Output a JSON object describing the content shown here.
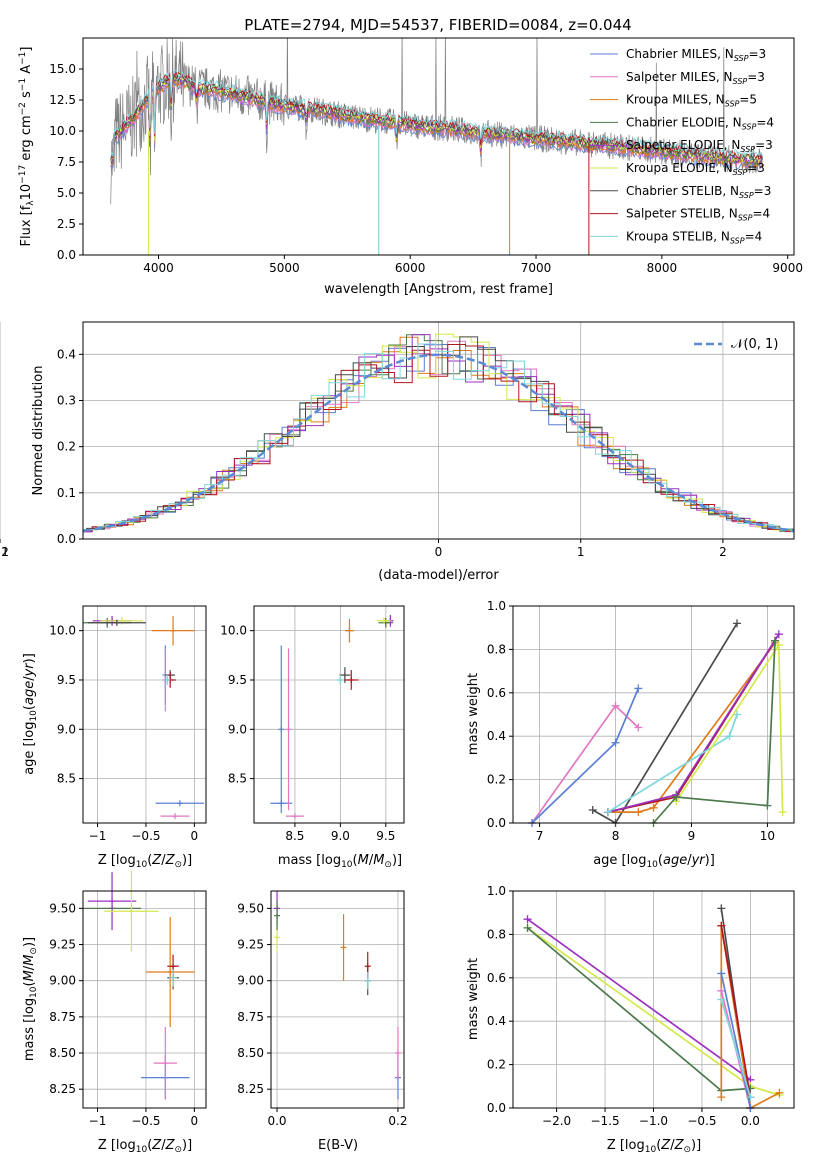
{
  "figure": {
    "title": "PLATE=2794, MJD=54537, FIBERID=0084, z=0.044"
  },
  "colors": {
    "chabrier_miles": "#5b7fd4",
    "salpeter_miles": "#e377c2",
    "kroupa_miles": "#e07b1a",
    "chabrier_elodie": "#4c7a4c",
    "salpeter_elodie": "#9b30c0",
    "kroupa_elodie": "#d4e84a",
    "chabrier_stelib": "#4a4a4a",
    "salpeter_stelib": "#b01820",
    "kroupa_stelib": "#7fd6dc",
    "data": "#808080",
    "gaussian": "#5b8bd4"
  },
  "chart_data": [
    {
      "id": "spectrum",
      "type": "line",
      "xlabel": "wavelength [Angstrom, rest frame]",
      "ylabel": "Flux [f_λ 10^-17 erg cm^-2 s^-1 A^-1]",
      "xlim": [
        3400,
        9050
      ],
      "ylim": [
        0,
        17.5
      ],
      "xticks": [
        "4000",
        "5000",
        "6000",
        "7000",
        "8000",
        "9000"
      ],
      "yticks": [
        "0.0",
        "2.5",
        "5.0",
        "7.5",
        "10.0",
        "12.5",
        "15.0"
      ],
      "legend_position": "top-right",
      "legend": [
        {
          "model": "Chabrier MILES",
          "n": "3",
          "color_key": "chabrier_miles"
        },
        {
          "model": "Salpeter MILES",
          "n": "3",
          "color_key": "salpeter_miles"
        },
        {
          "model": "Kroupa MILES",
          "n": "5",
          "color_key": "kroupa_miles"
        },
        {
          "model": "Chabrier ELODIE",
          "n": "4",
          "color_key": "chabrier_elodie"
        },
        {
          "model": "Salpeter ELODIE",
          "n": "3",
          "color_key": "salpeter_elodie"
        },
        {
          "model": "Kroupa ELODIE",
          "n": "3",
          "color_key": "kroupa_elodie"
        },
        {
          "model": "Chabrier STELIB",
          "n": "3",
          "color_key": "chabrier_stelib"
        },
        {
          "model": "Salpeter STELIB",
          "n": "4",
          "color_key": "salpeter_stelib"
        },
        {
          "model": "Kroupa STELIB",
          "n": "4",
          "color_key": "kroupa_stelib"
        }
      ],
      "legend_subscript": "SSP",
      "continuum": [
        [
          3650,
          9.5
        ],
        [
          3700,
          10.0
        ],
        [
          3800,
          11.0
        ],
        [
          3900,
          12.5
        ],
        [
          4000,
          13.5
        ],
        [
          4100,
          14.2
        ],
        [
          4200,
          14.0
        ],
        [
          4300,
          13.5
        ],
        [
          4500,
          13.2
        ],
        [
          4800,
          12.5
        ],
        [
          5000,
          12.0
        ],
        [
          5200,
          11.8
        ],
        [
          5500,
          11.2
        ],
        [
          5800,
          10.8
        ],
        [
          6000,
          10.5
        ],
        [
          6300,
          10.2
        ],
        [
          6600,
          9.8
        ],
        [
          7000,
          9.4
        ],
        [
          7400,
          9.0
        ],
        [
          7800,
          8.6
        ],
        [
          8200,
          8.1
        ],
        [
          8500,
          7.8
        ],
        [
          8800,
          7.6
        ]
      ],
      "absorption_lines": [
        [
          3934,
          6.0
        ],
        [
          3969,
          5.0
        ],
        [
          4102,
          3.0
        ],
        [
          4304,
          2.0
        ],
        [
          4861,
          2.5
        ],
        [
          5175,
          2.0
        ],
        [
          5893,
          2.0
        ],
        [
          6563,
          2.0
        ]
      ]
    },
    {
      "id": "residuals",
      "type": "line",
      "xlabel": "(data-model)/error",
      "ylabel": "Normed distribution",
      "xlim": [
        -2.5,
        2.5
      ],
      "ylim": [
        0,
        0.47
      ],
      "xticks": [
        "−2",
        "−1",
        "0",
        "1",
        "2"
      ],
      "yticks": [
        "0.0",
        "0.1",
        "0.2",
        "0.3",
        "0.4"
      ],
      "grid": true,
      "legend_position": "top-right",
      "gaussian_label": "𝒩(0, 1)",
      "bin_width": 0.125
    },
    {
      "id": "age_vs_Z",
      "type": "scatter",
      "xlabel": "Z [log10(Z/Z⊙)]",
      "ylabel": "age [log10(age/yr)]",
      "xlim": [
        -1.15,
        0.12
      ],
      "ylim": [
        8.05,
        10.25
      ],
      "xticks": [
        -1,
        -0.5,
        0
      ],
      "xticklabels": [
        "−1",
        "−0.5",
        "0"
      ],
      "yticks": [
        8.5,
        9.0,
        9.5,
        10.0
      ],
      "yticklabels": [
        "8.5",
        "9.0",
        "9.5",
        "10.0"
      ],
      "points": [
        {
          "c": "chabrier_miles",
          "x": -0.15,
          "y": 8.25,
          "xe": 0.25,
          "ye": 0
        },
        {
          "c": "salpeter_miles",
          "x": -0.2,
          "y": 8.12,
          "xe": 0.15,
          "ye": 0
        },
        {
          "c": "chabrier_miles",
          "x": -0.3,
          "y": 9.55,
          "xe": 0,
          "ye": 0.3
        },
        {
          "c": "salpeter_miles",
          "x": -0.3,
          "y": 9.5,
          "xe": 0,
          "ye": 0.32
        },
        {
          "c": "kroupa_miles",
          "x": -0.22,
          "y": 10.0,
          "xe": 0.22,
          "ye": 0.15
        },
        {
          "c": "chabrier_stelib",
          "x": -0.25,
          "y": 9.55,
          "xe": 0.05,
          "ye": 0.05
        },
        {
          "c": "salpeter_stelib",
          "x": -0.25,
          "y": 9.5,
          "xe": 0.06,
          "ye": 0.08
        },
        {
          "c": "kroupa_stelib",
          "x": -0.28,
          "y": 9.5,
          "xe": 0.03,
          "ye": 0.05
        },
        {
          "c": "chabrier_elodie",
          "x": -0.9,
          "y": 10.08,
          "xe": 0.25,
          "ye": 0.05
        },
        {
          "c": "salpeter_elodie",
          "x": -0.85,
          "y": 10.1,
          "xe": 0.2,
          "ye": 0.05
        },
        {
          "c": "kroupa_elodie",
          "x": -0.75,
          "y": 10.1,
          "xe": 0.22,
          "ye": 0.04
        },
        {
          "c": "chabrier_stelib",
          "x": -0.8,
          "y": 10.08,
          "xe": 0.3,
          "ye": 0.03
        }
      ]
    },
    {
      "id": "age_vs_mass",
      "type": "scatter",
      "xlabel": "mass [log10(M/M⊙)]",
      "ylabel": "",
      "xlim": [
        8.05,
        9.7
      ],
      "ylim": [
        8.05,
        10.25
      ],
      "xticks": [
        8.5,
        9.0,
        9.5
      ],
      "xticklabels": [
        "8.5",
        "9.0",
        "9.5"
      ],
      "yticks": [
        8.5,
        9.0,
        9.5,
        10.0
      ],
      "yticklabels": [
        "8.5",
        "9.0",
        "9.5",
        "10.0"
      ],
      "points": [
        {
          "c": "chabrier_miles",
          "x": 8.35,
          "y": 8.25,
          "xe": 0.12,
          "ye": 0
        },
        {
          "c": "salpeter_miles",
          "x": 8.5,
          "y": 8.12,
          "xe": 0.1,
          "ye": 0
        },
        {
          "c": "chabrier_miles",
          "x": 8.35,
          "y": 9.0,
          "xe": 0,
          "ye": 0.85
        },
        {
          "c": "salpeter_miles",
          "x": 8.43,
          "y": 9.0,
          "xe": 0,
          "ye": 0.82
        },
        {
          "c": "kroupa_miles",
          "x": 9.1,
          "y": 10.0,
          "xe": 0.05,
          "ye": 0.12
        },
        {
          "c": "chabrier_stelib",
          "x": 9.05,
          "y": 9.55,
          "xe": 0.06,
          "ye": 0.08
        },
        {
          "c": "salpeter_stelib",
          "x": 9.12,
          "y": 9.5,
          "xe": 0.08,
          "ye": 0.1
        },
        {
          "c": "kroupa_stelib",
          "x": 9.0,
          "y": 9.5,
          "xe": 0.04,
          "ye": 0.05
        },
        {
          "c": "chabrier_elodie",
          "x": 9.5,
          "y": 10.08,
          "xe": 0.08,
          "ye": 0.05
        },
        {
          "c": "salpeter_elodie",
          "x": 9.55,
          "y": 10.1,
          "xe": 0.03,
          "ye": 0.06
        },
        {
          "c": "kroupa_elodie",
          "x": 9.48,
          "y": 10.1,
          "xe": 0.08,
          "ye": 0.03
        }
      ]
    },
    {
      "id": "massweight_vs_age",
      "type": "line",
      "xlabel": "age [log10(age/yr)]",
      "ylabel": "mass weight",
      "xlim": [
        6.65,
        10.35
      ],
      "ylim": [
        0,
        1
      ],
      "xticks": [
        7,
        8,
        9,
        10
      ],
      "xticklabels": [
        "7",
        "8",
        "9",
        "10"
      ],
      "yticks": [
        0,
        0.2,
        0.4,
        0.6,
        0.8,
        1.0
      ],
      "yticklabels": [
        "0.0",
        "0.2",
        "0.4",
        "0.6",
        "0.8",
        "1.0"
      ],
      "series": [
        {
          "c": "salpeter_miles",
          "x": [
            6.9,
            8.0,
            8.3
          ],
          "y": [
            0.0,
            0.54,
            0.44
          ]
        },
        {
          "c": "chabrier_miles",
          "x": [
            6.9,
            8.0,
            8.3
          ],
          "y": [
            0.0,
            0.37,
            0.62
          ]
        },
        {
          "c": "chabrier_stelib",
          "x": [
            7.7,
            8.0,
            9.6
          ],
          "y": [
            0.06,
            0.0,
            0.92
          ]
        },
        {
          "c": "kroupa_miles",
          "x": [
            7.9,
            8.3,
            8.5,
            10.1
          ],
          "y": [
            0.05,
            0.05,
            0.07,
            0.83
          ]
        },
        {
          "c": "salpeter_stelib",
          "x": [
            7.9,
            8.8,
            10.1
          ],
          "y": [
            0.05,
            0.12,
            0.84
          ]
        },
        {
          "c": "salpeter_elodie",
          "x": [
            7.9,
            8.8,
            10.15
          ],
          "y": [
            0.05,
            0.13,
            0.87
          ]
        },
        {
          "c": "kroupa_stelib",
          "x": [
            7.9,
            9.5,
            9.6
          ],
          "y": [
            0.05,
            0.4,
            0.5
          ]
        },
        {
          "c": "kroupa_elodie",
          "x": [
            8.8,
            10.15,
            10.2
          ],
          "y": [
            0.1,
            0.82,
            0.05
          ]
        },
        {
          "c": "chabrier_elodie",
          "x": [
            8.5,
            8.8,
            10.0,
            10.1
          ],
          "y": [
            0.0,
            0.12,
            0.08,
            0.84
          ]
        }
      ]
    },
    {
      "id": "mass_vs_Z",
      "type": "scatter",
      "xlabel": "Z [log10(Z/Z⊙)]",
      "ylabel": "mass [log10(M/M⊙)]",
      "xlim": [
        -1.15,
        0.12
      ],
      "ylim": [
        8.12,
        9.62
      ],
      "xticks": [
        -1,
        -0.5,
        0
      ],
      "xticklabels": [
        "−1",
        "−0.5",
        "0"
      ],
      "yticks": [
        8.25,
        8.5,
        8.75,
        9.0,
        9.25,
        9.5
      ],
      "yticklabels": [
        "8.25",
        "8.50",
        "8.75",
        "9.00",
        "9.25",
        "9.50"
      ],
      "points": [
        {
          "c": "chabrier_miles",
          "x": -0.3,
          "y": 8.33,
          "xe": 0.25,
          "ye": 0.15
        },
        {
          "c": "salpeter_miles",
          "x": -0.3,
          "y": 8.43,
          "xe": 0.12,
          "ye": 0.25
        },
        {
          "c": "kroupa_miles",
          "x": -0.25,
          "y": 9.06,
          "xe": 0.25,
          "ye": 0.38
        },
        {
          "c": "chabrier_stelib",
          "x": -0.22,
          "y": 9.02,
          "xe": 0.06,
          "ye": 0.08
        },
        {
          "c": "salpeter_stelib",
          "x": -0.22,
          "y": 9.1,
          "xe": 0.06,
          "ye": 0.08
        },
        {
          "c": "kroupa_stelib",
          "x": -0.22,
          "y": 9.02,
          "xe": 0.04,
          "ye": 0.06
        },
        {
          "c": "chabrier_elodie",
          "x": -0.85,
          "y": 9.5,
          "xe": 0.3,
          "ye": 0.0
        },
        {
          "c": "salpeter_elodie",
          "x": -0.85,
          "y": 9.55,
          "xe": 0.25,
          "ye": 0.2
        },
        {
          "c": "kroupa_elodie",
          "x": -0.65,
          "y": 9.48,
          "xe": 0.28,
          "ye": 0.28
        }
      ]
    },
    {
      "id": "mass_vs_ebv",
      "type": "scatter",
      "xlabel": "E(B-V)",
      "ylabel": "",
      "xlim": [
        -0.01,
        0.21
      ],
      "ylim": [
        8.12,
        9.62
      ],
      "xticks": [
        0.0,
        0.2
      ],
      "xticklabels": [
        "0.0",
        "0.2"
      ],
      "yticks": [
        8.25,
        8.5,
        8.75,
        9.0,
        9.25,
        9.5
      ],
      "yticklabels": [
        "8.25",
        "8.50",
        "8.75",
        "9.00",
        "9.25",
        "9.50"
      ],
      "points": [
        {
          "c": "chabrier_miles",
          "x": 0.2,
          "y": 8.33,
          "xe": 0,
          "ye": 0.15
        },
        {
          "c": "salpeter_miles",
          "x": 0.2,
          "y": 8.5,
          "xe": 0,
          "ye": 0.18
        },
        {
          "c": "kroupa_miles",
          "x": 0.11,
          "y": 9.23,
          "xe": 0,
          "ye": 0.23
        },
        {
          "c": "chabrier_stelib",
          "x": 0.15,
          "y": 9.0,
          "xe": 0,
          "ye": 0.1
        },
        {
          "c": "salpeter_stelib",
          "x": 0.15,
          "y": 9.1,
          "xe": 0,
          "ye": 0.1
        },
        {
          "c": "kroupa_stelib",
          "x": 0.15,
          "y": 9.0,
          "xe": 0,
          "ye": 0.06
        },
        {
          "c": "salpeter_elodie",
          "x": 0.0,
          "y": 9.5,
          "xe": 0,
          "ye": 0.12
        },
        {
          "c": "kroupa_elodie",
          "x": 0.0,
          "y": 9.3,
          "xe": 0,
          "ye": 0.1
        },
        {
          "c": "chabrier_elodie",
          "x": 0.0,
          "y": 9.45,
          "xe": 0,
          "ye": 0.1
        }
      ]
    },
    {
      "id": "massweight_vs_Z",
      "type": "line",
      "xlabel": "Z [log10(Z/Z⊙)]",
      "ylabel": "mass weight",
      "xlim": [
        -2.45,
        0.45
      ],
      "ylim": [
        0,
        1
      ],
      "xticks": [
        -2.0,
        -1.5,
        -1.0,
        -0.5,
        0.0
      ],
      "xticklabels": [
        "−2.0",
        "−1.5",
        "−1.0",
        "−0.5",
        "0.0"
      ],
      "yticks": [
        0,
        0.2,
        0.4,
        0.6,
        0.8,
        1.0
      ],
      "yticklabels": [
        "0.0",
        "0.2",
        "0.4",
        "0.6",
        "0.8",
        "1.0"
      ],
      "series": [
        {
          "c": "salpeter_elodie",
          "x": [
            -2.3,
            0.0
          ],
          "y": [
            0.87,
            0.13
          ]
        },
        {
          "c": "kroupa_elodie",
          "x": [
            -2.3,
            0.0,
            0.3
          ],
          "y": [
            0.83,
            0.1,
            0.06
          ]
        },
        {
          "c": "chabrier_elodie",
          "x": [
            -2.3,
            -0.3,
            0.0
          ],
          "y": [
            0.83,
            0.08,
            0.09
          ]
        },
        {
          "c": "chabrier_stelib",
          "x": [
            -0.3,
            0.0
          ],
          "y": [
            0.92,
            0.0
          ]
        },
        {
          "c": "kroupa_miles",
          "x": [
            -0.3,
            -0.3,
            0.0,
            0.3
          ],
          "y": [
            0.05,
            0.84,
            0.0,
            0.07
          ]
        },
        {
          "c": "salpeter_miles",
          "x": [
            -0.3,
            0.0
          ],
          "y": [
            0.54,
            0.0
          ]
        },
        {
          "c": "chabrier_miles",
          "x": [
            -0.3,
            0.0
          ],
          "y": [
            0.62,
            0.0
          ]
        },
        {
          "c": "salpeter_stelib",
          "x": [
            -0.3,
            0.0
          ],
          "y": [
            0.84,
            0.05
          ]
        },
        {
          "c": "kroupa_stelib",
          "x": [
            -0.3,
            0.0
          ],
          "y": [
            0.5,
            0.05
          ]
        }
      ]
    }
  ]
}
